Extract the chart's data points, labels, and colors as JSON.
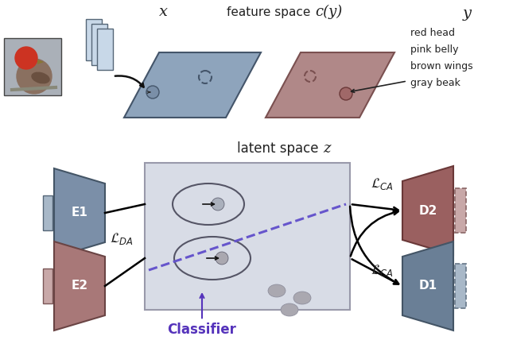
{
  "bg_color": "#ffffff",
  "blue_slate": "#7b8fa8",
  "rose_color": "#a87878",
  "latent_bg": "#d8dce6",
  "feature_blue": "#8ea4bc",
  "class_rose": "#b08888",
  "classifier_color": "#5533bb",
  "labels_y": [
    "red head",
    "pink belly",
    "brown wings",
    "gray beak"
  ],
  "label_E1": "E1",
  "label_E2": "E2",
  "label_D1": "D1",
  "label_D2": "D2",
  "label_latent": "latent space",
  "label_z": "z",
  "label_x": "x",
  "label_feature_space": "feature space",
  "label_cy": "c(y)",
  "label_y": "y",
  "label_LCA": "$\\mathcal{L}_{CA}$",
  "label_LDA": "$\\mathcal{L}_{DA}$",
  "label_classifier": "Classifier",
  "enc_blue_face": "#7b8fa8",
  "enc_blue_edge": "#445566",
  "enc_rose_face": "#a87878",
  "enc_rose_edge": "#6a4444",
  "dec_rose_face": "#9a6060",
  "dec_rose_edge": "#6a3838",
  "dec_blue_face": "#6a7f96",
  "dec_blue_edge": "#445566",
  "dot_blue": "#7a8fa8",
  "dot_rose": "#a87878",
  "dot_gray": "#9a9aaa",
  "cnn_face": "#c8d8e8",
  "cnn_edge": "#556677"
}
